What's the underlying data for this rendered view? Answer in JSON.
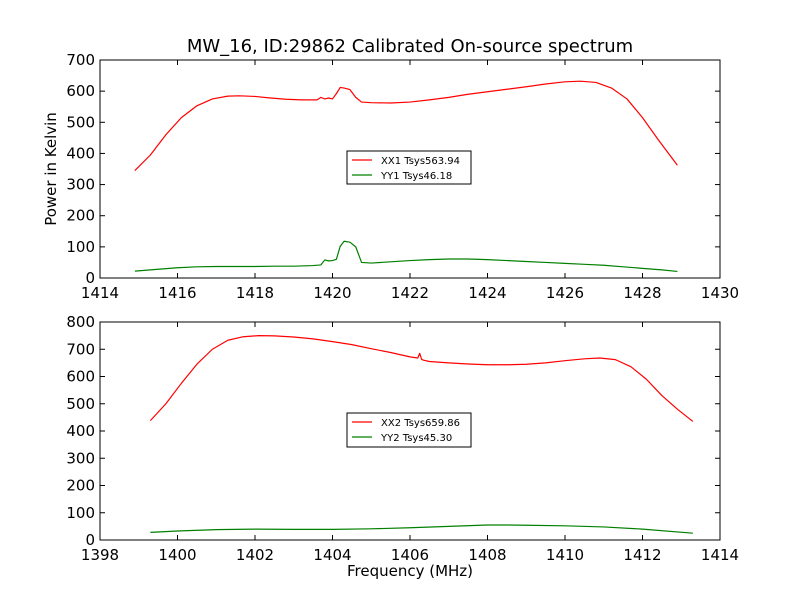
{
  "chart_data": [
    {
      "type": "line",
      "title": "MW_16, ID:29862 Calibrated On-source spectrum",
      "xlabel": "",
      "ylabel": "Power in Kelvin",
      "xlim": [
        1414,
        1430
      ],
      "ylim": [
        0,
        700
      ],
      "xticks": [
        1414,
        1416,
        1418,
        1420,
        1422,
        1424,
        1426,
        1428,
        1430
      ],
      "yticks": [
        0,
        100,
        200,
        300,
        400,
        500,
        600,
        700
      ],
      "legend_position": "center",
      "series": [
        {
          "name": "XX1 Tsys563.94",
          "color": "#ff0000",
          "x": [
            1414.9,
            1415.3,
            1415.7,
            1416.1,
            1416.5,
            1416.9,
            1417.3,
            1417.6,
            1418.0,
            1418.4,
            1418.8,
            1419.2,
            1419.6,
            1419.7,
            1419.8,
            1419.9,
            1420.0,
            1420.1,
            1420.2,
            1420.3,
            1420.45,
            1420.6,
            1420.75,
            1421.0,
            1421.5,
            1422.0,
            1422.5,
            1423.0,
            1423.5,
            1424.0,
            1424.5,
            1425.0,
            1425.5,
            1426.0,
            1426.4,
            1426.8,
            1427.2,
            1427.6,
            1428.0,
            1428.4,
            1428.9
          ],
          "y": [
            345,
            395,
            460,
            515,
            553,
            575,
            584,
            585,
            583,
            578,
            574,
            572,
            572,
            580,
            575,
            578,
            575,
            592,
            612,
            610,
            605,
            580,
            565,
            563,
            562,
            565,
            572,
            580,
            590,
            598,
            606,
            614,
            623,
            630,
            632,
            628,
            610,
            575,
            515,
            445,
            362
          ]
        },
        {
          "name": "YY1 Tsys46.18",
          "color": "#008000",
          "x": [
            1414.9,
            1415.5,
            1416.0,
            1416.5,
            1417.0,
            1417.5,
            1418.0,
            1418.5,
            1419.0,
            1419.5,
            1419.7,
            1419.8,
            1419.9,
            1420.0,
            1420.1,
            1420.2,
            1420.3,
            1420.45,
            1420.6,
            1420.75,
            1421.0,
            1421.5,
            1422.0,
            1422.5,
            1423.0,
            1423.5,
            1424.0,
            1424.5,
            1425.0,
            1425.5,
            1426.0,
            1426.5,
            1427.0,
            1427.5,
            1428.0,
            1428.5,
            1428.9
          ],
          "y": [
            22,
            28,
            33,
            36,
            37,
            37,
            37,
            38,
            38,
            40,
            42,
            58,
            55,
            56,
            60,
            102,
            118,
            115,
            100,
            50,
            48,
            52,
            56,
            59,
            61,
            61,
            59,
            56,
            53,
            50,
            47,
            44,
            41,
            36,
            31,
            26,
            21
          ]
        }
      ]
    },
    {
      "type": "line",
      "title": "",
      "xlabel": "Frequency (MHz)",
      "ylabel": "",
      "xlim": [
        1398,
        1414
      ],
      "ylim": [
        0,
        800
      ],
      "xticks": [
        1398,
        1400,
        1402,
        1404,
        1406,
        1408,
        1410,
        1412,
        1414
      ],
      "yticks": [
        0,
        100,
        200,
        300,
        400,
        500,
        600,
        700,
        800
      ],
      "legend_position": "center",
      "series": [
        {
          "name": "XX2 Tsys659.86",
          "color": "#ff0000",
          "x": [
            1399.3,
            1399.7,
            1400.1,
            1400.5,
            1400.9,
            1401.3,
            1401.7,
            1402.1,
            1402.5,
            1403.0,
            1403.5,
            1404.0,
            1404.5,
            1405.0,
            1405.5,
            1406.0,
            1406.2,
            1406.25,
            1406.3,
            1406.35,
            1406.5,
            1407.0,
            1407.5,
            1408.0,
            1408.5,
            1409.0,
            1409.5,
            1410.0,
            1410.5,
            1410.9,
            1411.3,
            1411.7,
            1412.1,
            1412.5,
            1412.9,
            1413.3
          ],
          "y": [
            438,
            500,
            575,
            645,
            700,
            733,
            746,
            750,
            749,
            745,
            738,
            728,
            717,
            702,
            688,
            672,
            668,
            685,
            663,
            660,
            655,
            650,
            646,
            643,
            643,
            645,
            650,
            658,
            665,
            668,
            662,
            636,
            590,
            530,
            480,
            435
          ]
        },
        {
          "name": "YY2 Tsys45.30",
          "color": "#008000",
          "x": [
            1399.3,
            1400.0,
            1401.0,
            1402.0,
            1403.0,
            1404.0,
            1405.0,
            1406.0,
            1407.0,
            1408.0,
            1408.5,
            1409.0,
            1410.0,
            1411.0,
            1412.0,
            1413.3
          ],
          "y": [
            28,
            33,
            38,
            40,
            39,
            39,
            41,
            45,
            50,
            55,
            55,
            54,
            52,
            48,
            40,
            25
          ]
        }
      ]
    }
  ]
}
